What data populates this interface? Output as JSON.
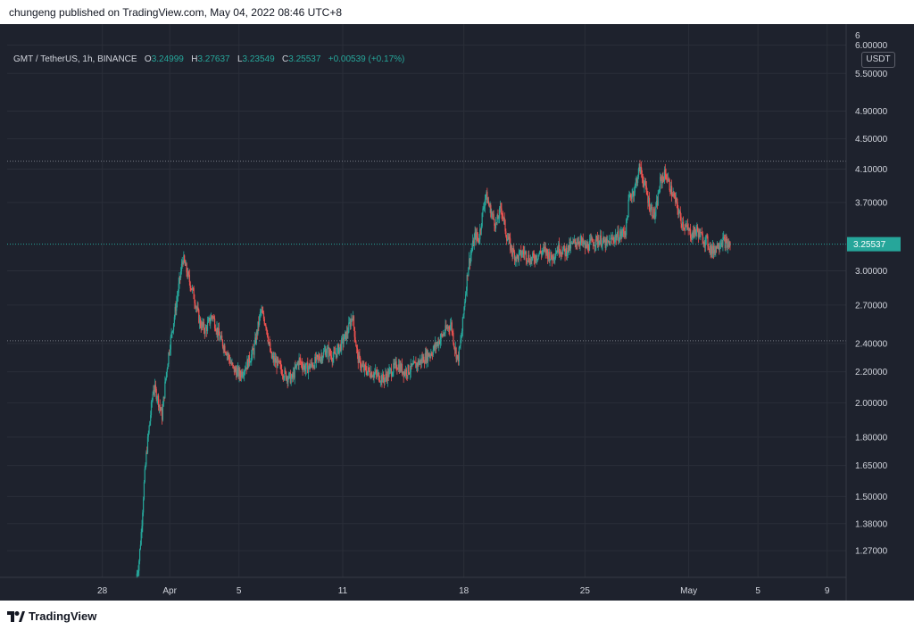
{
  "page": {
    "publisher_line": "chungeng published on TradingView.com, May 04, 2022 08:46 UTC+8",
    "footer_brand": "TradingView",
    "background_color": "#1e222d",
    "up_color": "#26a69a",
    "down_color": "#ef5350"
  },
  "legend": {
    "symbol": "GMT / TetherUS, 1h, BINANCE",
    "o_label": "O",
    "o_value": "3.24999",
    "h_label": "H",
    "h_value": "3.27637",
    "l_label": "L",
    "l_value": "3.23549",
    "c_label": "C",
    "c_value": "3.25537",
    "change": "+0.00539 (+0.17%)"
  },
  "price_axis": {
    "currency": "USDT",
    "last_price_label": "3.25537",
    "clipped_top_label": "6"
  },
  "chart_data": {
    "type": "candlestick",
    "title": "GMT / TetherUS, 1h, BINANCE",
    "scale": "log",
    "ylim": [
      1.17,
      6.4
    ],
    "y_ticks": [
      {
        "value": 6.0,
        "label": "6.00000"
      },
      {
        "value": 5.5,
        "label": "5.50000"
      },
      {
        "value": 4.9,
        "label": "4.90000"
      },
      {
        "value": 4.5,
        "label": "4.50000"
      },
      {
        "value": 4.1,
        "label": "4.10000"
      },
      {
        "value": 3.7,
        "label": "3.70000"
      },
      {
        "value": 3.0,
        "label": "3.00000"
      },
      {
        "value": 2.7,
        "label": "2.70000"
      },
      {
        "value": 2.4,
        "label": "2.40000"
      },
      {
        "value": 2.2,
        "label": "2.20000"
      },
      {
        "value": 2.0,
        "label": "2.00000"
      },
      {
        "value": 1.8,
        "label": "1.80000"
      },
      {
        "value": 1.65,
        "label": "1.65000"
      },
      {
        "value": 1.5,
        "label": "1.50000"
      },
      {
        "value": 1.38,
        "label": "1.38000"
      },
      {
        "value": 1.27,
        "label": "1.27000"
      }
    ],
    "x_ticks": [
      {
        "day": 28,
        "label": "28"
      },
      {
        "day": 31.9,
        "label": "Apr"
      },
      {
        "day": 35.9,
        "label": "5"
      },
      {
        "day": 41.9,
        "label": "11"
      },
      {
        "day": 48.9,
        "label": "18"
      },
      {
        "day": 55.9,
        "label": "25"
      },
      {
        "day": 61.9,
        "label": "May"
      },
      {
        "day": 65.9,
        "label": "5"
      },
      {
        "day": 69.9,
        "label": "9"
      }
    ],
    "x_range_days": [
      22.5,
      71.0
    ],
    "horizontal_levels": [
      {
        "value": 4.2,
        "style": "dotted"
      },
      {
        "value": 2.42,
        "style": "dotted"
      }
    ],
    "last_price": 3.25537,
    "data_start_day": 30.0,
    "data_end_day": 64.3,
    "price_path": [
      {
        "day": 30.0,
        "price": 1.17
      },
      {
        "day": 30.15,
        "price": 1.22
      },
      {
        "day": 30.3,
        "price": 1.35
      },
      {
        "day": 30.45,
        "price": 1.55
      },
      {
        "day": 30.6,
        "price": 1.72
      },
      {
        "day": 30.8,
        "price": 1.9
      },
      {
        "day": 31.0,
        "price": 2.1
      },
      {
        "day": 31.2,
        "price": 2.05
      },
      {
        "day": 31.5,
        "price": 1.92
      },
      {
        "day": 31.7,
        "price": 2.15
      },
      {
        "day": 31.9,
        "price": 2.35
      },
      {
        "day": 32.2,
        "price": 2.6
      },
      {
        "day": 32.5,
        "price": 2.9
      },
      {
        "day": 32.7,
        "price": 3.12
      },
      {
        "day": 33.0,
        "price": 2.95
      },
      {
        "day": 33.3,
        "price": 2.8
      },
      {
        "day": 33.7,
        "price": 2.55
      },
      {
        "day": 34.0,
        "price": 2.5
      },
      {
        "day": 34.4,
        "price": 2.62
      },
      {
        "day": 34.8,
        "price": 2.45
      },
      {
        "day": 35.2,
        "price": 2.35
      },
      {
        "day": 35.6,
        "price": 2.22
      },
      {
        "day": 36.0,
        "price": 2.18
      },
      {
        "day": 36.4,
        "price": 2.25
      },
      {
        "day": 36.8,
        "price": 2.35
      },
      {
        "day": 37.2,
        "price": 2.65
      },
      {
        "day": 37.5,
        "price": 2.55
      },
      {
        "day": 37.8,
        "price": 2.3
      },
      {
        "day": 38.2,
        "price": 2.25
      },
      {
        "day": 38.6,
        "price": 2.18
      },
      {
        "day": 39.0,
        "price": 2.15
      },
      {
        "day": 39.4,
        "price": 2.28
      },
      {
        "day": 39.8,
        "price": 2.22
      },
      {
        "day": 40.2,
        "price": 2.25
      },
      {
        "day": 40.6,
        "price": 2.3
      },
      {
        "day": 41.0,
        "price": 2.35
      },
      {
        "day": 41.4,
        "price": 2.3
      },
      {
        "day": 41.8,
        "price": 2.38
      },
      {
        "day": 42.2,
        "price": 2.48
      },
      {
        "day": 42.5,
        "price": 2.62
      },
      {
        "day": 42.8,
        "price": 2.3
      },
      {
        "day": 43.1,
        "price": 2.22
      },
      {
        "day": 43.5,
        "price": 2.2
      },
      {
        "day": 43.9,
        "price": 2.18
      },
      {
        "day": 44.3,
        "price": 2.15
      },
      {
        "day": 44.7,
        "price": 2.2
      },
      {
        "day": 45.1,
        "price": 2.25
      },
      {
        "day": 45.5,
        "price": 2.2
      },
      {
        "day": 45.9,
        "price": 2.22
      },
      {
        "day": 46.3,
        "price": 2.26
      },
      {
        "day": 46.7,
        "price": 2.3
      },
      {
        "day": 47.1,
        "price": 2.34
      },
      {
        "day": 47.5,
        "price": 2.42
      },
      {
        "day": 47.9,
        "price": 2.5
      },
      {
        "day": 48.2,
        "price": 2.55
      },
      {
        "day": 48.4,
        "price": 2.38
      },
      {
        "day": 48.6,
        "price": 2.28
      },
      {
        "day": 48.8,
        "price": 2.45
      },
      {
        "day": 49.0,
        "price": 2.75
      },
      {
        "day": 49.2,
        "price": 3.05
      },
      {
        "day": 49.4,
        "price": 3.2
      },
      {
        "day": 49.6,
        "price": 3.35
      },
      {
        "day": 49.8,
        "price": 3.3
      },
      {
        "day": 50.0,
        "price": 3.55
      },
      {
        "day": 50.2,
        "price": 3.8
      },
      {
        "day": 50.5,
        "price": 3.6
      },
      {
        "day": 50.8,
        "price": 3.45
      },
      {
        "day": 51.1,
        "price": 3.65
      },
      {
        "day": 51.4,
        "price": 3.35
      },
      {
        "day": 51.7,
        "price": 3.2
      },
      {
        "day": 52.0,
        "price": 3.12
      },
      {
        "day": 52.4,
        "price": 3.18
      },
      {
        "day": 52.8,
        "price": 3.1
      },
      {
        "day": 53.2,
        "price": 3.15
      },
      {
        "day": 53.6,
        "price": 3.2
      },
      {
        "day": 54.0,
        "price": 3.12
      },
      {
        "day": 54.4,
        "price": 3.22
      },
      {
        "day": 54.8,
        "price": 3.18
      },
      {
        "day": 55.2,
        "price": 3.25
      },
      {
        "day": 55.6,
        "price": 3.3
      },
      {
        "day": 56.0,
        "price": 3.22
      },
      {
        "day": 56.4,
        "price": 3.28
      },
      {
        "day": 56.8,
        "price": 3.3
      },
      {
        "day": 57.2,
        "price": 3.25
      },
      {
        "day": 57.6,
        "price": 3.32
      },
      {
        "day": 58.0,
        "price": 3.35
      },
      {
        "day": 58.3,
        "price": 3.4
      },
      {
        "day": 58.5,
        "price": 3.75
      },
      {
        "day": 58.8,
        "price": 3.85
      },
      {
        "day": 59.1,
        "price": 4.12
      },
      {
        "day": 59.4,
        "price": 3.9
      },
      {
        "day": 59.7,
        "price": 3.65
      },
      {
        "day": 60.0,
        "price": 3.55
      },
      {
        "day": 60.3,
        "price": 3.95
      },
      {
        "day": 60.6,
        "price": 4.05
      },
      {
        "day": 60.9,
        "price": 3.85
      },
      {
        "day": 61.2,
        "price": 3.7
      },
      {
        "day": 61.5,
        "price": 3.5
      },
      {
        "day": 61.8,
        "price": 3.42
      },
      {
        "day": 62.1,
        "price": 3.35
      },
      {
        "day": 62.4,
        "price": 3.4
      },
      {
        "day": 62.7,
        "price": 3.32
      },
      {
        "day": 63.0,
        "price": 3.28
      },
      {
        "day": 63.3,
        "price": 3.18
      },
      {
        "day": 63.6,
        "price": 3.25
      },
      {
        "day": 63.9,
        "price": 3.3
      },
      {
        "day": 64.2,
        "price": 3.24
      },
      {
        "day": 64.3,
        "price": 3.25537
      }
    ]
  }
}
